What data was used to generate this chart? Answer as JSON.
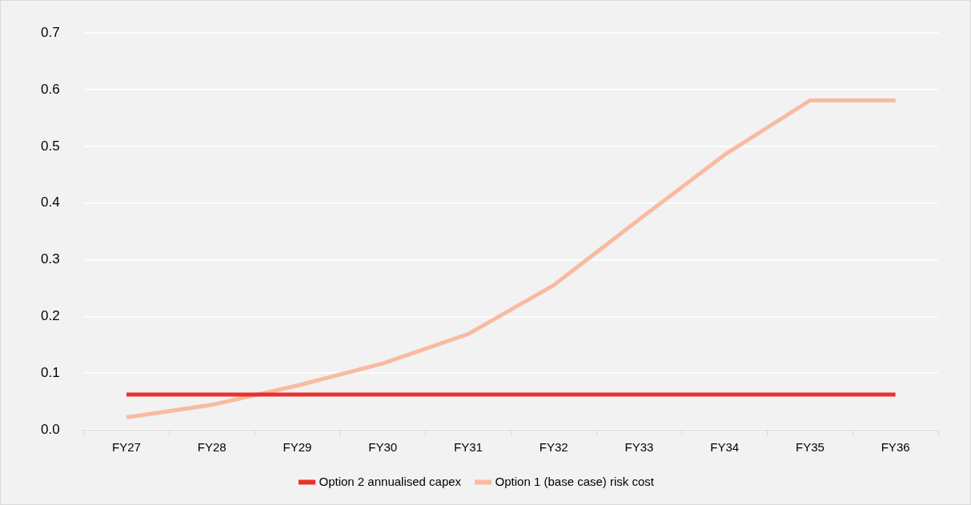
{
  "chart_data": {
    "type": "line",
    "categories": [
      "FY27",
      "FY28",
      "FY29",
      "FY30",
      "FY31",
      "FY32",
      "FY33",
      "FY34",
      "FY35",
      "FY36"
    ],
    "series": [
      {
        "name": "Option 2 annualised capex",
        "color": "#e8312f",
        "values": [
          0.062,
          0.062,
          0.062,
          0.062,
          0.062,
          0.062,
          0.062,
          0.062,
          0.062,
          0.062
        ]
      },
      {
        "name": "Option 1 (base case) risk cost",
        "color": "#f8bba0",
        "values": [
          0.022,
          0.044,
          0.078,
          0.117,
          0.169,
          0.255,
          0.371,
          0.485,
          0.581,
          0.581
        ]
      }
    ],
    "ylim": [
      0,
      0.7
    ],
    "yticks": [
      {
        "value": 0,
        "label": "0.0"
      },
      0.1,
      0.2,
      0.3,
      0.4,
      0.5,
      0.6,
      0.7
    ],
    "grid": "y",
    "legend": "bottom",
    "marker": "none",
    "line_style": "solid"
  }
}
